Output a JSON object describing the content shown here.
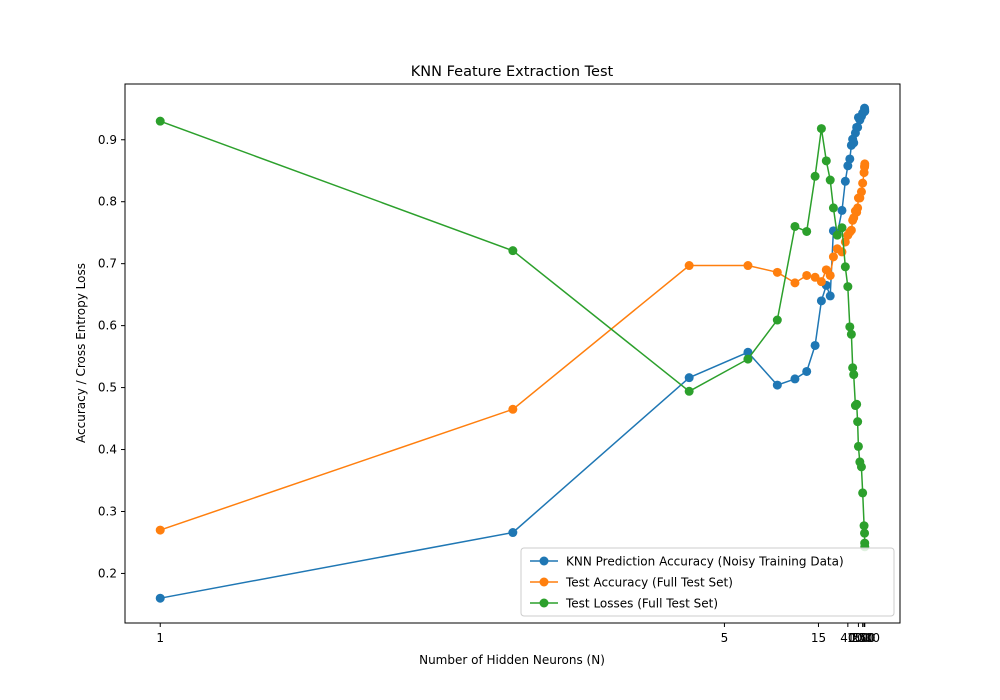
{
  "chart_data": {
    "type": "line",
    "title": "KNN Feature Extraction Test",
    "xlabel": "Number of Hidden Neurons (N)",
    "ylabel": "Accuracy / Cross Entropy Loss",
    "x_scale": "reciprocal",
    "xlim": [
      1,
      1000
    ],
    "ylim": [
      0.12,
      0.99
    ],
    "x_ticks": [
      1,
      5,
      15,
      40,
      100,
      250,
      500,
      1000
    ],
    "y_ticks": [
      0.2,
      0.3,
      0.4,
      0.5,
      0.6,
      0.7,
      0.8,
      0.9
    ],
    "grid": false,
    "legend_position": "bottom-right",
    "x": [
      1,
      2,
      4,
      6,
      8,
      10,
      12,
      14,
      16,
      18,
      20,
      22,
      25,
      30,
      35,
      40,
      45,
      50,
      55,
      60,
      70,
      80,
      90,
      100,
      125,
      175,
      250,
      500,
      750,
      900,
      1000
    ],
    "series": [
      {
        "name": "KNN Prediction Accuracy (Noisy Training Data)",
        "color": "#1f77b4",
        "values": [
          0.16,
          0.266,
          0.516,
          0.557,
          0.504,
          0.514,
          0.526,
          0.568,
          0.64,
          0.665,
          0.648,
          0.753,
          0.748,
          0.786,
          0.833,
          0.858,
          0.869,
          0.891,
          0.901,
          0.895,
          0.911,
          0.92,
          0.92,
          0.936,
          0.932,
          0.938,
          0.943,
          0.945,
          0.951,
          0.948,
          0.946
        ]
      },
      {
        "name": "Test Accuracy (Full Test Set)",
        "color": "#ff7f0e",
        "values": [
          0.27,
          0.465,
          0.697,
          0.697,
          0.686,
          0.669,
          0.681,
          0.678,
          0.671,
          0.69,
          0.681,
          0.711,
          0.724,
          0.719,
          0.735,
          0.746,
          0.751,
          0.754,
          0.77,
          0.774,
          0.785,
          0.783,
          0.79,
          0.806,
          0.806,
          0.816,
          0.83,
          0.847,
          0.856,
          0.858,
          0.861
        ]
      },
      {
        "name": "Test Losses (Full Test Set)",
        "color": "#2ca02c",
        "values": [
          0.93,
          0.721,
          0.494,
          0.546,
          0.609,
          0.76,
          0.752,
          0.841,
          0.918,
          0.866,
          0.835,
          0.79,
          0.746,
          0.758,
          0.695,
          0.663,
          0.598,
          0.586,
          0.532,
          0.521,
          0.471,
          0.473,
          0.445,
          0.405,
          0.38,
          0.372,
          0.33,
          0.277,
          0.265,
          0.249,
          0.243
        ]
      }
    ]
  }
}
